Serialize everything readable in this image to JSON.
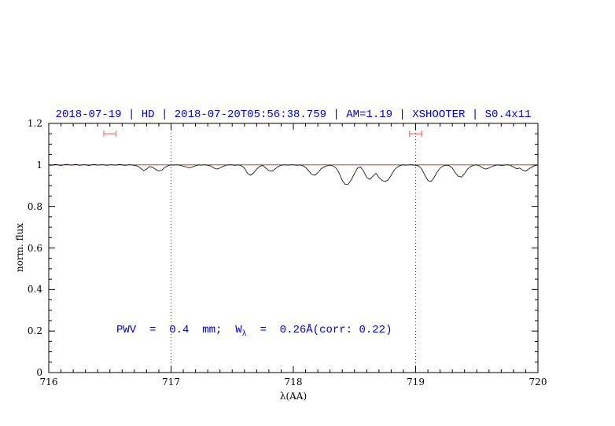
{
  "title": "2018-07-19 | HD | 2018-07-20T05:56:38.759 | AM=1.19 | XSHOOTER | S0.4x11",
  "colors": {
    "title": "#0000e0",
    "annotation": "#0000cd",
    "continuum": "#b22222",
    "marker": "#dd7777",
    "spectrum": "#000000",
    "frame": "#000000"
  },
  "annotation": {
    "part1": "PWV  =  0.4  mm;  W",
    "sub": "λ",
    "part2": "  =  0.26Å(corr: 0.22)"
  },
  "axes": {
    "xlabel": "λ(AA)",
    "ylabel": "norm. flux",
    "xlim": [
      716,
      720
    ],
    "ylim": [
      0,
      1.2
    ],
    "xticks": [
      716,
      717,
      718,
      719,
      720
    ],
    "xtick_labels": [
      "716",
      "717",
      "718",
      "719",
      "720"
    ],
    "yticks": [
      0,
      0.2,
      0.4,
      0.6,
      0.8,
      1,
      1.2
    ],
    "ytick_labels": [
      "0",
      "0.2",
      "0.4",
      "0.6",
      "0.8",
      "1",
      "1.2"
    ],
    "x_minor_step": 0.1,
    "y_minor_step": 0.05,
    "grid": false
  },
  "chart_data": {
    "type": "line",
    "title": "2018-07-19 | HD | 2018-07-20T05:56:38.759 | AM=1.19 | XSHOOTER | S0.4x11",
    "xlabel": "λ(AA)",
    "ylabel": "norm. flux",
    "xlim": [
      716,
      720
    ],
    "ylim": [
      0,
      1.2
    ],
    "annotation": "PWV = 0.4 mm; Wλ = 0.26Å(corr: 0.22)",
    "x_start": 716.0,
    "x_step": 0.025,
    "flux": [
      1.0,
      0.998,
      1.002,
      1.0,
      0.997,
      1.001,
      1.003,
      0.999,
      1.0,
      1.002,
      0.998,
      1.0,
      1.001,
      0.997,
      1.0,
      1.002,
      0.999,
      1.001,
      1.0,
      0.998,
      1.001,
      1.0,
      0.999,
      1.002,
      1.0,
      0.998,
      1.0,
      1.001,
      0.997,
      0.995,
      0.985,
      0.972,
      0.98,
      0.992,
      0.988,
      0.978,
      0.971,
      0.975,
      0.988,
      0.996,
      1.0,
      0.999,
      1.001,
      0.998,
      0.994,
      0.99,
      0.986,
      0.99,
      0.996,
      1.0,
      0.999,
      1.001,
      0.998,
      0.995,
      0.985,
      0.98,
      0.985,
      0.993,
      0.999,
      1.001,
      1.0,
      0.998,
      1.0,
      0.996,
      0.985,
      0.96,
      0.95,
      0.962,
      0.98,
      0.993,
      0.998,
      0.985,
      0.973,
      0.97,
      0.98,
      0.992,
      0.998,
      1.001,
      0.999,
      1.0,
      1.001,
      0.998,
      1.0,
      0.997,
      0.988,
      0.972,
      0.955,
      0.95,
      0.962,
      0.98,
      0.99,
      0.996,
      0.999,
      0.995,
      0.985,
      0.96,
      0.925,
      0.905,
      0.908,
      0.93,
      0.96,
      0.985,
      0.99,
      0.97,
      0.94,
      0.93,
      0.945,
      0.96,
      0.94,
      0.925,
      0.92,
      0.928,
      0.95,
      0.975,
      0.99,
      0.998,
      1.0,
      0.999,
      1.001,
      1.0,
      0.998,
      0.995,
      0.98,
      0.95,
      0.925,
      0.92,
      0.938,
      0.965,
      0.985,
      0.995,
      0.999,
      0.996,
      0.985,
      0.962,
      0.945,
      0.942,
      0.958,
      0.98,
      0.993,
      0.999,
      1.0,
      0.995,
      0.985,
      0.98,
      0.985,
      0.993,
      0.998,
      1.0,
      0.997,
      0.999,
      1.001,
      0.998,
      0.99,
      0.982,
      0.985,
      0.975,
      0.97,
      0.98,
      0.99,
      0.996,
      1.0
    ],
    "continuum_y": 1.0,
    "vlines": [
      717,
      719
    ],
    "markers": [
      {
        "x": 716.5,
        "y": 1.15,
        "halfwidth": 0.05
      },
      {
        "x": 719.0,
        "y": 1.15,
        "halfwidth": 0.05
      }
    ]
  }
}
